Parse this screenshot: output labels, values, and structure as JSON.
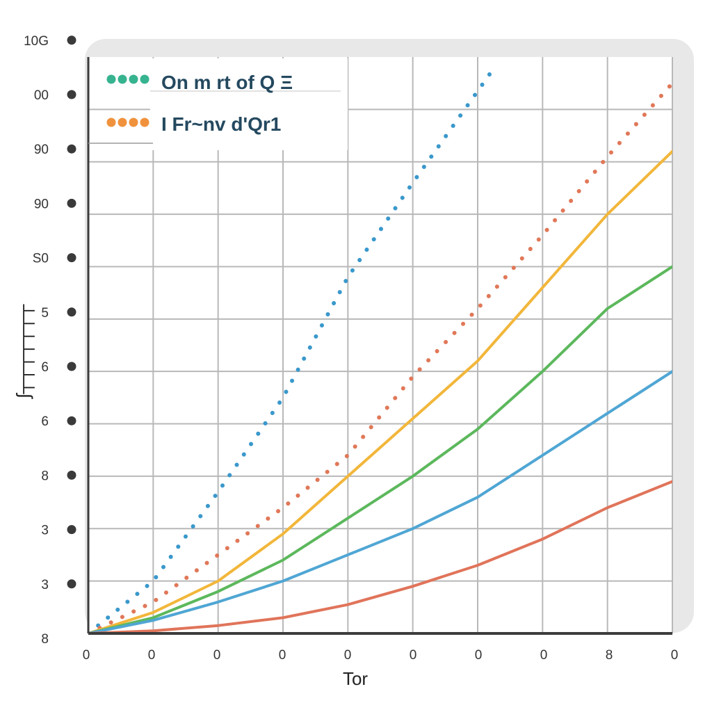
{
  "chart_data": {
    "type": "line",
    "title": "",
    "xlabel": "Tor",
    "ylabel": "ʃ┬┬┬┬┬┬┬",
    "x_tick_labels": [
      "0",
      "0",
      "0",
      "0",
      "0",
      "0",
      "0",
      "0",
      "8",
      "0"
    ],
    "y_tick_labels": [
      "8",
      "3",
      "3",
      "8",
      "6",
      "6",
      "5",
      "S0",
      "90",
      "90",
      "00",
      "10G"
    ],
    "grid": true,
    "legend": {
      "position": "top-left",
      "entries": [
        {
          "label": "On m rt of Q Ξ",
          "marker_color": "#36b38f",
          "text_color": "#24495f",
          "style": "dotted"
        },
        {
          "label": "I  Fr~nv d'Qr1",
          "marker_color": "#f0923d",
          "text_color": "#24495f",
          "style": "dotted"
        }
      ]
    },
    "series": [
      {
        "color": "#3a98cc",
        "style": "dotted",
        "x": [
          0,
          1,
          2,
          3,
          4,
          5,
          6.2
        ],
        "y": [
          0,
          1,
          2.7,
          4.5,
          6.8,
          8.6,
          10.7
        ]
      },
      {
        "color": "#e07858",
        "style": "dotted",
        "x": [
          0,
          1,
          2,
          3,
          4,
          5,
          6,
          7,
          8,
          9
        ],
        "y": [
          0,
          0.6,
          1.5,
          2.4,
          3.4,
          4.9,
          6.2,
          7.6,
          9.1,
          10.5
        ]
      },
      {
        "color": "#f2b63a",
        "style": "solid",
        "x": [
          0,
          1,
          2,
          3,
          4,
          5,
          6,
          7,
          8,
          9
        ],
        "y": [
          0,
          0.4,
          1.0,
          1.9,
          3.0,
          4.1,
          5.2,
          6.6,
          8.0,
          9.2
        ]
      },
      {
        "color": "#5cb85c",
        "style": "solid",
        "x": [
          0,
          1,
          2,
          3,
          4,
          5,
          6,
          7,
          8,
          9
        ],
        "y": [
          0,
          0.3,
          0.8,
          1.4,
          2.2,
          3.0,
          3.9,
          5.0,
          6.2,
          7.0
        ]
      },
      {
        "color": "#4fa6d4",
        "style": "solid",
        "x": [
          0,
          1,
          2,
          3,
          4,
          5,
          6,
          7,
          8,
          9
        ],
        "y": [
          0,
          0.25,
          0.6,
          1.0,
          1.5,
          2.0,
          2.6,
          3.4,
          4.2,
          5.0
        ]
      },
      {
        "color": "#e0745a",
        "style": "solid",
        "x": [
          0,
          1,
          2,
          3,
          4,
          5,
          6,
          7,
          8,
          9
        ],
        "y": [
          0,
          0.05,
          0.15,
          0.3,
          0.55,
          0.9,
          1.3,
          1.8,
          2.4,
          2.9
        ]
      }
    ],
    "xlim": [
      0,
      9
    ],
    "ylim": [
      0,
      11
    ]
  }
}
